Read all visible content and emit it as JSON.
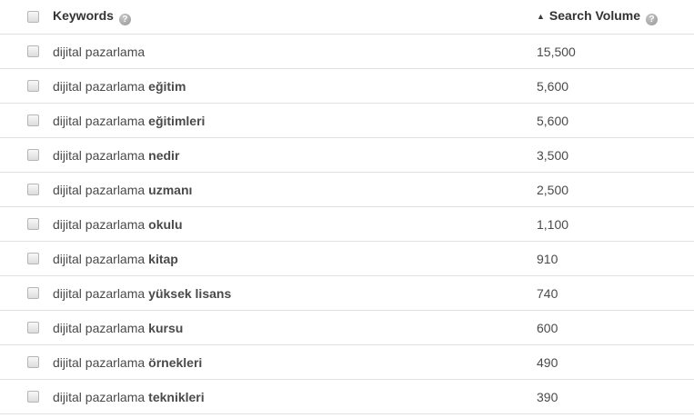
{
  "table": {
    "header": {
      "keywords_label": "Keywords",
      "search_volume_label": "Search Volume",
      "sort_arrow": "▲",
      "help_icon_glyph": "?"
    },
    "rows": [
      {
        "keyword_base": "dijital pazarlama",
        "keyword_bold": "",
        "volume": "15,500"
      },
      {
        "keyword_base": "dijital pazarlama",
        "keyword_bold": "eğitim",
        "volume": "5,600"
      },
      {
        "keyword_base": "dijital pazarlama",
        "keyword_bold": "eğitimleri",
        "volume": "5,600"
      },
      {
        "keyword_base": "dijital pazarlama",
        "keyword_bold": "nedir",
        "volume": "3,500"
      },
      {
        "keyword_base": "dijital pazarlama",
        "keyword_bold": "uzmanı",
        "volume": "2,500"
      },
      {
        "keyword_base": "dijital pazarlama",
        "keyword_bold": "okulu",
        "volume": "1,100"
      },
      {
        "keyword_base": "dijital pazarlama",
        "keyword_bold": "kitap",
        "volume": "910"
      },
      {
        "keyword_base": "dijital pazarlama",
        "keyword_bold": "yüksek lisans",
        "volume": "740"
      },
      {
        "keyword_base": "dijital pazarlama",
        "keyword_bold": "kursu",
        "volume": "600"
      },
      {
        "keyword_base": "dijital pazarlama",
        "keyword_bold": "örnekleri",
        "volume": "490"
      },
      {
        "keyword_base": "dijital pazarlama",
        "keyword_bold": "teknikleri",
        "volume": "390"
      }
    ],
    "colors": {
      "row_text": "#4a4a4a",
      "header_text": "#333333",
      "border": "#e0e0e0",
      "help_icon_bg": "#a0a0a0"
    }
  }
}
